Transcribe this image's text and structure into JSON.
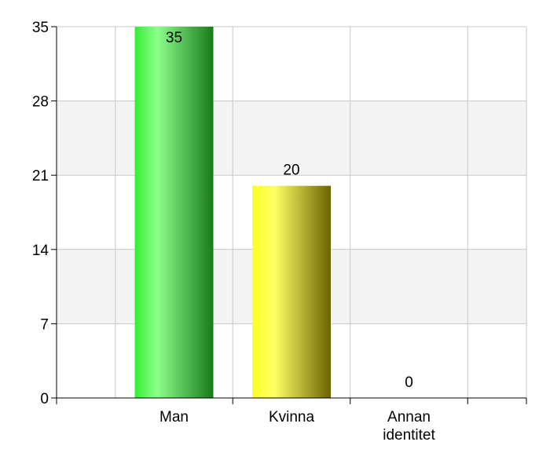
{
  "chart_data": {
    "type": "bar",
    "categories": [
      [
        "Man"
      ],
      [
        "Kvinna"
      ],
      [
        "Annan",
        "identitet"
      ]
    ],
    "values": [
      35,
      20,
      0
    ],
    "data_labels": [
      "35",
      "20",
      "0"
    ],
    "title": "",
    "xlabel": "",
    "ylabel": "",
    "ylim": [
      0,
      35
    ],
    "yticks": [
      0,
      7,
      14,
      21,
      28,
      35
    ],
    "grid": true,
    "legend": "none",
    "colors": {
      "bars": [
        {
          "light": "#8cff8c",
          "base": "#33ee33",
          "dark": "#1a7a1a"
        },
        {
          "light": "#ffff66",
          "base": "#ffff22",
          "dark": "#6b6400"
        }
      ],
      "band": "#f4f4f4",
      "grid": "#c8c8c8",
      "axis": "#000000"
    }
  }
}
